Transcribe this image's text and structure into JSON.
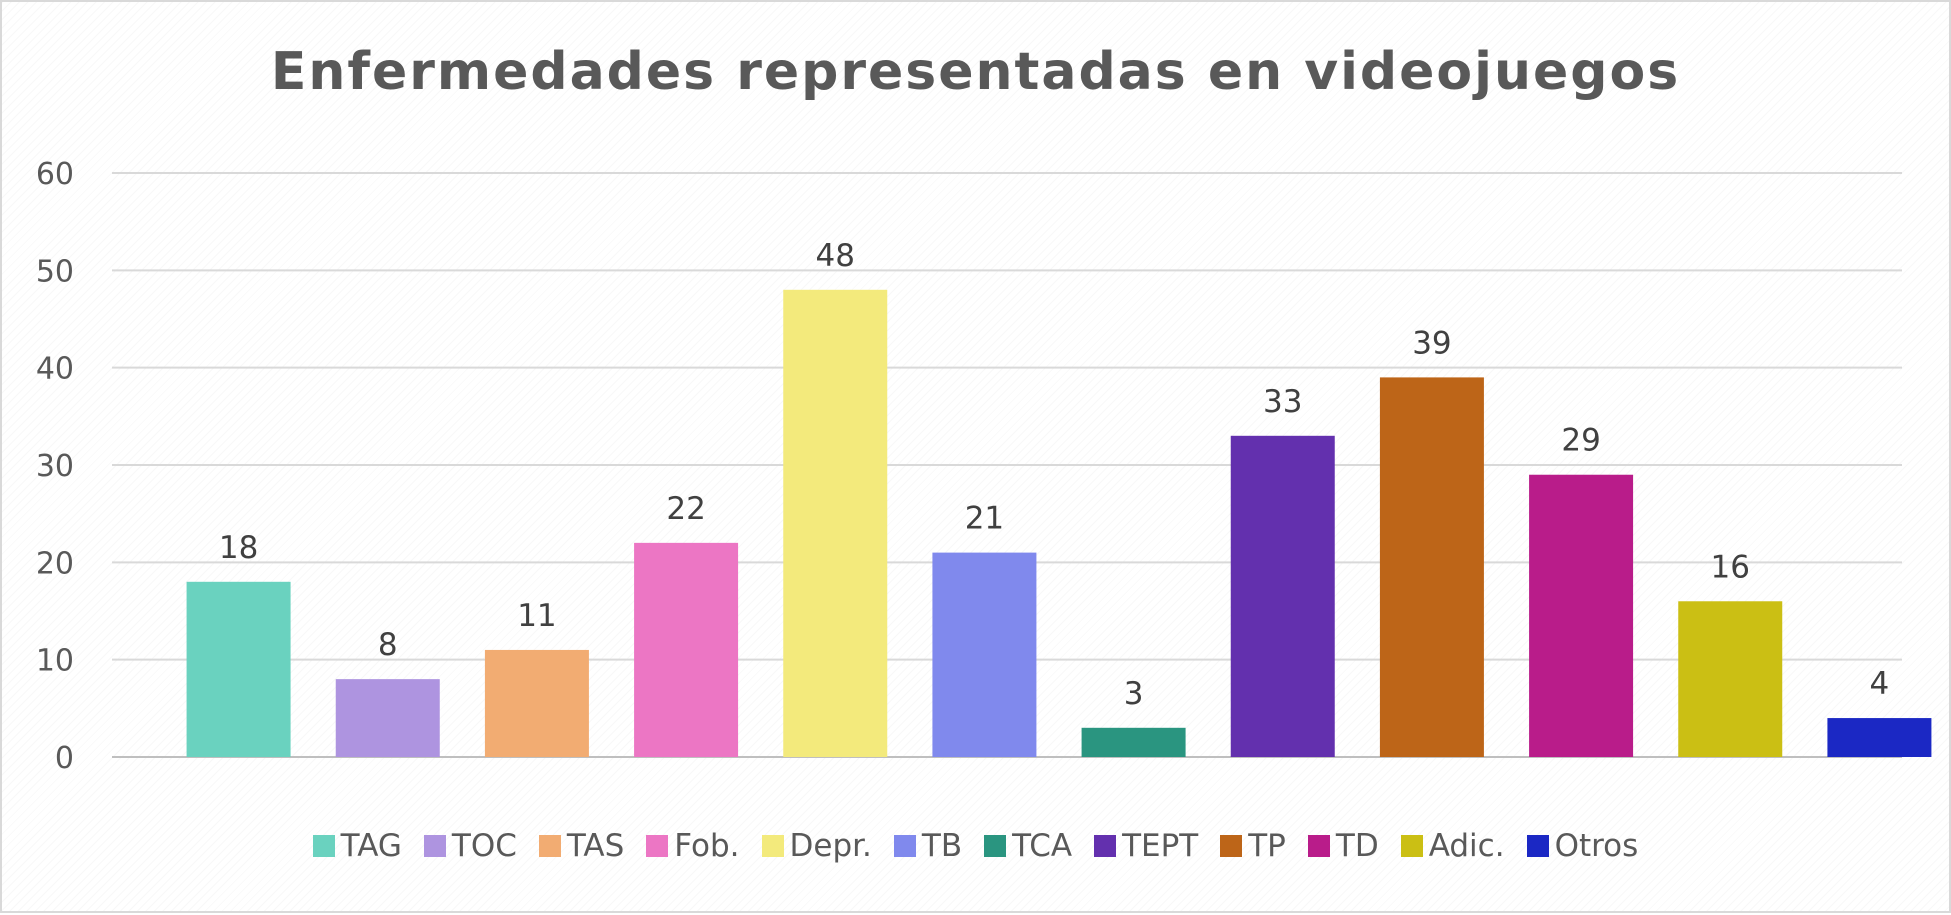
{
  "chart_data": {
    "type": "bar",
    "title": "Enfermedades representadas en videojuegos",
    "categories": [
      "TAG",
      "TOC",
      "TAS",
      "Fob.",
      "Depr.",
      "TB",
      "TCA",
      "TEPT",
      "TP",
      "TD",
      "Adic.",
      "Otros"
    ],
    "values": [
      18,
      8,
      11,
      22,
      48,
      21,
      3,
      33,
      39,
      29,
      16,
      4
    ],
    "colors": [
      "#6ad2bf",
      "#ae94e0",
      "#f2ac72",
      "#ec76c4",
      "#f3ea7c",
      "#8089ed",
      "#2a9580",
      "#6330ae",
      "#bd6518",
      "#b91c8a",
      "#cbbf14",
      "#1b28c4"
    ],
    "ylim": [
      0,
      60
    ],
    "yticks": [
      "0",
      "10",
      "20",
      "30",
      "40",
      "50",
      "60"
    ],
    "xlabel": "",
    "ylabel": "",
    "grid": true,
    "legend_position": "bottom"
  }
}
